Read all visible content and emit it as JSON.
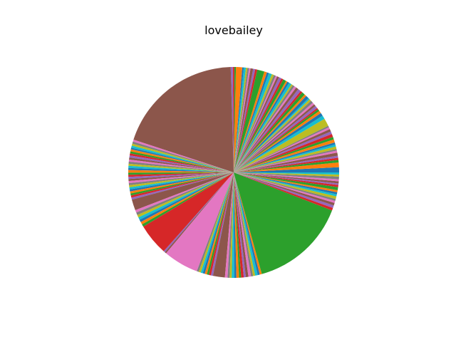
{
  "chart_data": {
    "type": "pie",
    "title": "lovebailey",
    "start_angle_deg": 0,
    "direction": "counterclockwise",
    "palette": [
      "#1f77b4",
      "#ff7f0e",
      "#2ca02c",
      "#d62728",
      "#9467bd",
      "#8c564b",
      "#e377c2",
      "#7f7f7f",
      "#bcbd22",
      "#17becf"
    ],
    "values": [
      1.0,
      0.9,
      0.5,
      0.4,
      0.4,
      0.6,
      0.4,
      0.3,
      0.5,
      0.4,
      0.4,
      0.6,
      0.5,
      0.6,
      0.5,
      0.5,
      0.4,
      0.3,
      1.5,
      0.7,
      0.6,
      0.5,
      0.4,
      0.3,
      0.5,
      0.4,
      0.4,
      0.5,
      0.4,
      0.3,
      0.6,
      0.4,
      0.6,
      0.4,
      0.6,
      0.5,
      0.4,
      0.4,
      0.3,
      0.5,
      0.4,
      0.3,
      0.6,
      0.4,
      0.5,
      0.4,
      0.3,
      0.4,
      0.4,
      0.6,
      0.4,
      0.5,
      1.4,
      0.4,
      0.4,
      0.5,
      0.3,
      0.3,
      0.3,
      0.4,
      0.3,
      1.2,
      0.3,
      0.3,
      0.4,
      24.6,
      0.4,
      0.4,
      0.4,
      0.4,
      0.3,
      0.4,
      0.4,
      0.4,
      0.4,
      0.4,
      0.4,
      0.4,
      0.4,
      0.4,
      0.4,
      0.5,
      0.4,
      0.4,
      0.4,
      0.4,
      0.4,
      0.4,
      0.4,
      0.4,
      0.4,
      0.4,
      0.4,
      0.4,
      0.4,
      2.1,
      0.5,
      0.5,
      0.5,
      0.5,
      0.5,
      0.5,
      0.5,
      6.1,
      0.3,
      0.3,
      6.8,
      0.4,
      0.4,
      0.4,
      0.4,
      0.4,
      0.4,
      0.4,
      0.4,
      2.3,
      0.5,
      0.4,
      0.4,
      0.5,
      0.4,
      0.5,
      0.4,
      0.5,
      0.4,
      0.5,
      0.5,
      0.4,
      0.4,
      0.5,
      0.4,
      0.4,
      18.7,
      0.5,
      0.5,
      0.5,
      0.4,
      0.4,
      0.5,
      0.4,
      0.4,
      0.4,
      0.6,
      0.4,
      0.3,
      0.4,
      0.4,
      0.5,
      0.4,
      0.4
    ]
  }
}
